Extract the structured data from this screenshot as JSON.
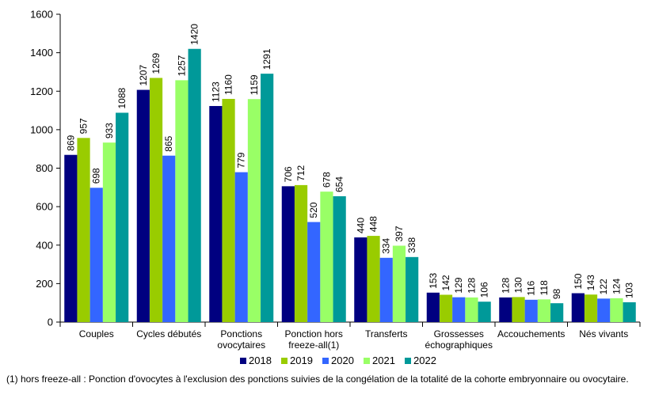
{
  "chart_data": {
    "type": "bar",
    "categories": [
      [
        "Couples"
      ],
      [
        "Cycles débutés"
      ],
      [
        "Ponctions",
        "ovocytaires"
      ],
      [
        "Ponction hors",
        "freeze-all(1)"
      ],
      [
        "Transferts"
      ],
      [
        "Grossesses",
        "échographiques"
      ],
      [
        "Accouchements"
      ],
      [
        "Nés vivants"
      ]
    ],
    "series": [
      {
        "name": "2018",
        "color": "#000080",
        "values": [
          869,
          1207,
          1123,
          706,
          440,
          153,
          128,
          150
        ]
      },
      {
        "name": "2019",
        "color": "#99CC00",
        "values": [
          957,
          1269,
          1160,
          712,
          448,
          142,
          130,
          143
        ]
      },
      {
        "name": "2020",
        "color": "#3366FF",
        "values": [
          698,
          865,
          779,
          520,
          334,
          129,
          116,
          122
        ]
      },
      {
        "name": "2021",
        "color": "#99FF66",
        "values": [
          933,
          1257,
          1159,
          678,
          397,
          128,
          118,
          124
        ]
      },
      {
        "name": "2022",
        "color": "#009999",
        "values": [
          1088,
          1420,
          1291,
          654,
          338,
          106,
          98,
          103
        ]
      }
    ],
    "ylim": [
      0,
      1600
    ],
    "yticks": [
      0,
      200,
      400,
      600,
      800,
      1000,
      1200,
      1400,
      1600
    ],
    "legend_position": "bottom",
    "grid": false
  },
  "footnote": "(1) hors freeze-all : Ponction d'ovocytes à l'exclusion des ponctions suivies de la congélation de la totalité de la cohorte embryonnaire ou ovocytaire."
}
